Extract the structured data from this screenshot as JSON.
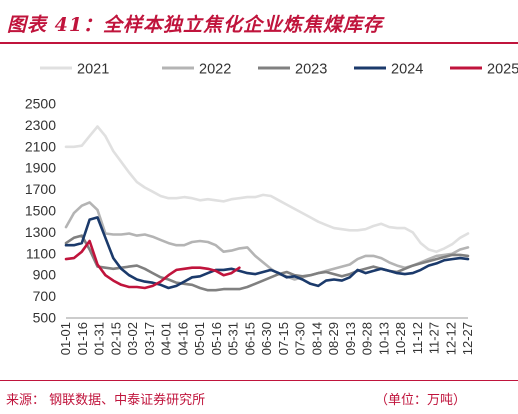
{
  "header": {
    "title": "图表 41：全样本独立焦化企业炼焦煤库存"
  },
  "footer": {
    "source": "来源：  钢联数据、中泰证券研究所",
    "unit": "（单位：万吨）"
  },
  "colors": {
    "accent": "#c0143c"
  },
  "chart_data": {
    "type": "line",
    "title": "",
    "xlabel": "",
    "ylabel": "",
    "ylim": [
      500,
      2500
    ],
    "yticks": [
      500,
      700,
      900,
      1100,
      1300,
      1500,
      1700,
      1900,
      2100,
      2300,
      2500
    ],
    "x_tick_labels": [
      "01-01",
      "01-16",
      "01-31",
      "02-15",
      "03-02",
      "03-17",
      "04-01",
      "04-16",
      "05-01",
      "05-16",
      "05-31",
      "06-15",
      "06-30",
      "07-15",
      "07-30",
      "08-14",
      "08-29",
      "09-13",
      "09-28",
      "10-13",
      "10-28",
      "11-12",
      "11-27",
      "12-12",
      "12-27"
    ],
    "grid": false,
    "legend_position": "top",
    "series": [
      {
        "name": "2021",
        "color": "#e0e0e0",
        "values": [
          2100,
          2100,
          2110,
          2200,
          2290,
          2200,
          2060,
          1960,
          1860,
          1770,
          1720,
          1680,
          1640,
          1620,
          1620,
          1630,
          1620,
          1600,
          1610,
          1600,
          1590,
          1610,
          1620,
          1630,
          1630,
          1650,
          1640,
          1600,
          1560,
          1520,
          1480,
          1440,
          1400,
          1370,
          1340,
          1330,
          1320,
          1320,
          1330,
          1360,
          1380,
          1350,
          1340,
          1340,
          1300,
          1200,
          1140,
          1120,
          1150,
          1190,
          1250,
          1290
        ]
      },
      {
        "name": "2022",
        "color": "#b4b4b4",
        "values": [
          1350,
          1480,
          1550,
          1580,
          1510,
          1290,
          1280,
          1280,
          1290,
          1270,
          1280,
          1260,
          1230,
          1200,
          1180,
          1180,
          1210,
          1220,
          1210,
          1180,
          1120,
          1130,
          1150,
          1160,
          1080,
          1020,
          960,
          910,
          890,
          860,
          880,
          900,
          920,
          940,
          960,
          980,
          1000,
          1050,
          1080,
          1080,
          1060,
          1020,
          990,
          970,
          990,
          1020,
          1050,
          1080,
          1090,
          1100,
          1140,
          1160
        ]
      },
      {
        "name": "2023",
        "color": "#808080",
        "values": [
          1200,
          1250,
          1270,
          1140,
          980,
          970,
          960,
          970,
          980,
          990,
          960,
          920,
          880,
          860,
          830,
          820,
          810,
          780,
          760,
          760,
          770,
          770,
          770,
          790,
          820,
          850,
          880,
          910,
          930,
          900,
          890,
          900,
          920,
          930,
          910,
          890,
          910,
          940,
          960,
          980,
          960,
          940,
          930,
          960,
          990,
          1010,
          1030,
          1050,
          1070,
          1090,
          1090,
          1080
        ]
      },
      {
        "name": "2024",
        "color": "#1b3a6b",
        "values": [
          1180,
          1180,
          1200,
          1420,
          1440,
          1250,
          1060,
          960,
          900,
          860,
          840,
          830,
          810,
          780,
          800,
          840,
          880,
          890,
          920,
          950,
          950,
          960,
          940,
          920,
          910,
          930,
          950,
          920,
          880,
          890,
          860,
          820,
          800,
          850,
          860,
          850,
          880,
          950,
          920,
          940,
          960,
          940,
          920,
          910,
          920,
          950,
          990,
          1010,
          1040,
          1050,
          1060,
          1050
        ]
      },
      {
        "name": "2025",
        "color": "#c0143c",
        "values": [
          1050,
          1060,
          1120,
          1220,
          1000,
          900,
          850,
          810,
          790,
          790,
          780,
          800,
          840,
          900,
          950,
          960,
          970,
          970,
          960,
          940,
          900,
          920,
          970
        ]
      }
    ]
  }
}
